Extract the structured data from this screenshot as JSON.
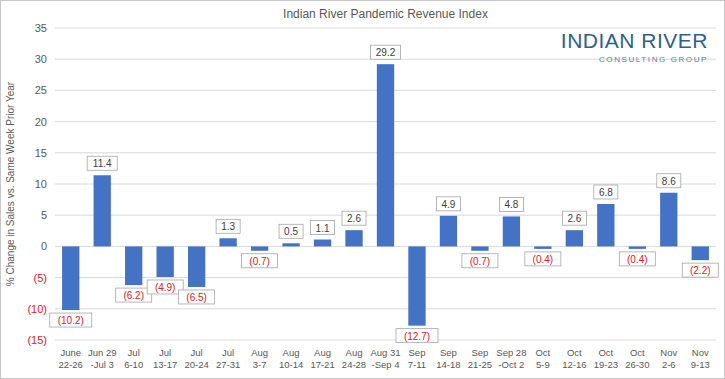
{
  "chart_data": {
    "type": "bar",
    "title": "Indian River Pandemic Revenue Index",
    "y_label": "% Change in Sales vs. Same Week Prior Year",
    "categories": [
      "June\n22-26",
      "Jun 29\n-Jul 3",
      "Jul\n6-10",
      "Jul\n13-17",
      "Jul\n20-24",
      "Jul\n27-31",
      "Aug\n3-7",
      "Aug\n10-14",
      "Aug\n17-21",
      "Aug\n24-28",
      "Aug 31\n-Sep 4",
      "Sep\n7-11",
      "Sep\n14-18",
      "Sep\n21-25",
      "Sep 28\n-Oct 2",
      "Oct\n5-9",
      "Oct\n12-16",
      "Oct\n19-23",
      "Oct\n26-30",
      "Nov\n2-6",
      "Nov\n9-13"
    ],
    "values": [
      -10.2,
      11.4,
      -6.2,
      -4.9,
      -6.5,
      1.3,
      -0.7,
      0.5,
      1.1,
      2.6,
      29.2,
      -12.7,
      4.9,
      -0.7,
      4.8,
      -0.4,
      2.6,
      6.8,
      -0.4,
      8.6,
      -2.2
    ],
    "value_labels": [
      "(10.2)",
      "11.4",
      "(6.2)",
      "(4.9)",
      "(6.5)",
      "1.3",
      "(0.7)",
      "0.5",
      "1.1",
      "2.6",
      "29.2",
      "(12.7)",
      "4.9",
      "(0.7)",
      "4.8",
      "(0.4)",
      "2.6",
      "6.8",
      "(0.4)",
      "8.6",
      "(2.2)"
    ],
    "color": "#4472c4",
    "ylim": [
      -15,
      35
    ],
    "yticks": [
      {
        "value": -15,
        "label": "(15)"
      },
      {
        "value": -10,
        "label": "(10)"
      },
      {
        "value": -5,
        "label": "(5)"
      },
      0,
      5,
      10,
      15,
      20,
      25,
      30,
      35
    ],
    "grid": true,
    "data_labels": true
  },
  "logo": {
    "line1": "INDIAN RIVER",
    "line2": "CONSULTING GROUP"
  }
}
